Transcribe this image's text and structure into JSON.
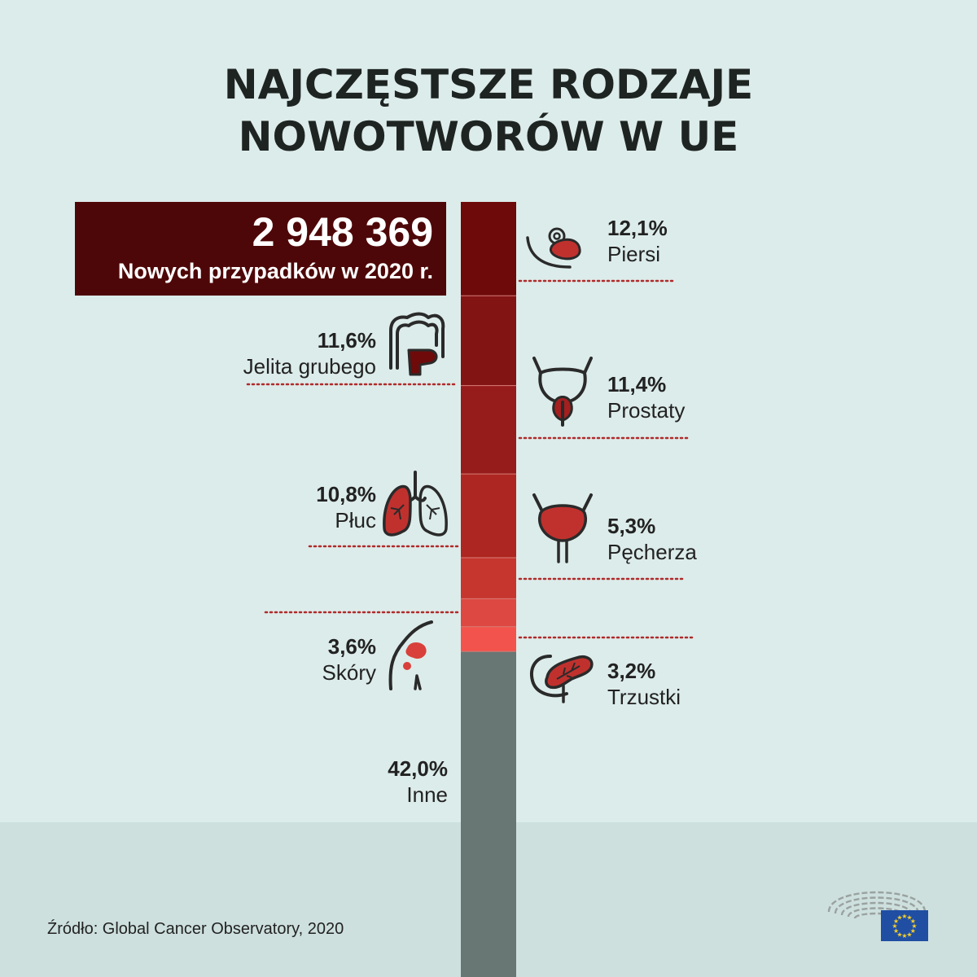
{
  "title_line1": "NAJCZĘSTSZE RODZAJE",
  "title_line2": "NOWOTWORÓW W UE",
  "total": {
    "number": "2 948 369",
    "label": "Nowych przypadków w 2020 r."
  },
  "labels": {
    "piersi": {
      "pct": "12,1%",
      "name": "Piersi"
    },
    "jelita": {
      "pct": "11,6%",
      "name": "Jelita grubego"
    },
    "prostaty": {
      "pct": "11,4%",
      "name": "Prostaty"
    },
    "pluc": {
      "pct": "10,8%",
      "name": "Płuc"
    },
    "pecherza": {
      "pct": "5,3%",
      "name": "Pęcherza"
    },
    "skory": {
      "pct": "3,6%",
      "name": "Skóry"
    },
    "trzustki": {
      "pct": "3,2%",
      "name": "Trzustki"
    },
    "inne": {
      "pct": "42,0%",
      "name": "Inne"
    }
  },
  "source": "Źródło: Global Cancer Observatory, 2020",
  "icons": [
    "breast-icon",
    "colon-icon",
    "prostate-icon",
    "lungs-icon",
    "bladder-icon",
    "skin-icon",
    "pancreas-icon",
    "european-parliament-logo",
    "eu-flag-icon"
  ],
  "chart_data": {
    "type": "bar",
    "stacked": true,
    "orientation": "vertical",
    "categories": [
      "Piersi",
      "Jelita grubego",
      "Prostaty",
      "Płuc",
      "Pęcherza",
      "Skóry",
      "Trzustki",
      "Inne"
    ],
    "values": [
      12.1,
      11.6,
      11.4,
      10.8,
      5.3,
      3.6,
      3.2,
      42.0
    ],
    "unit": "%",
    "colors": [
      "#6e0a0a",
      "#831414",
      "#961b1b",
      "#ae2621",
      "#c6362e",
      "#dd4842",
      "#f2534c",
      "#687674"
    ],
    "total_new_cases": 2948369
  }
}
